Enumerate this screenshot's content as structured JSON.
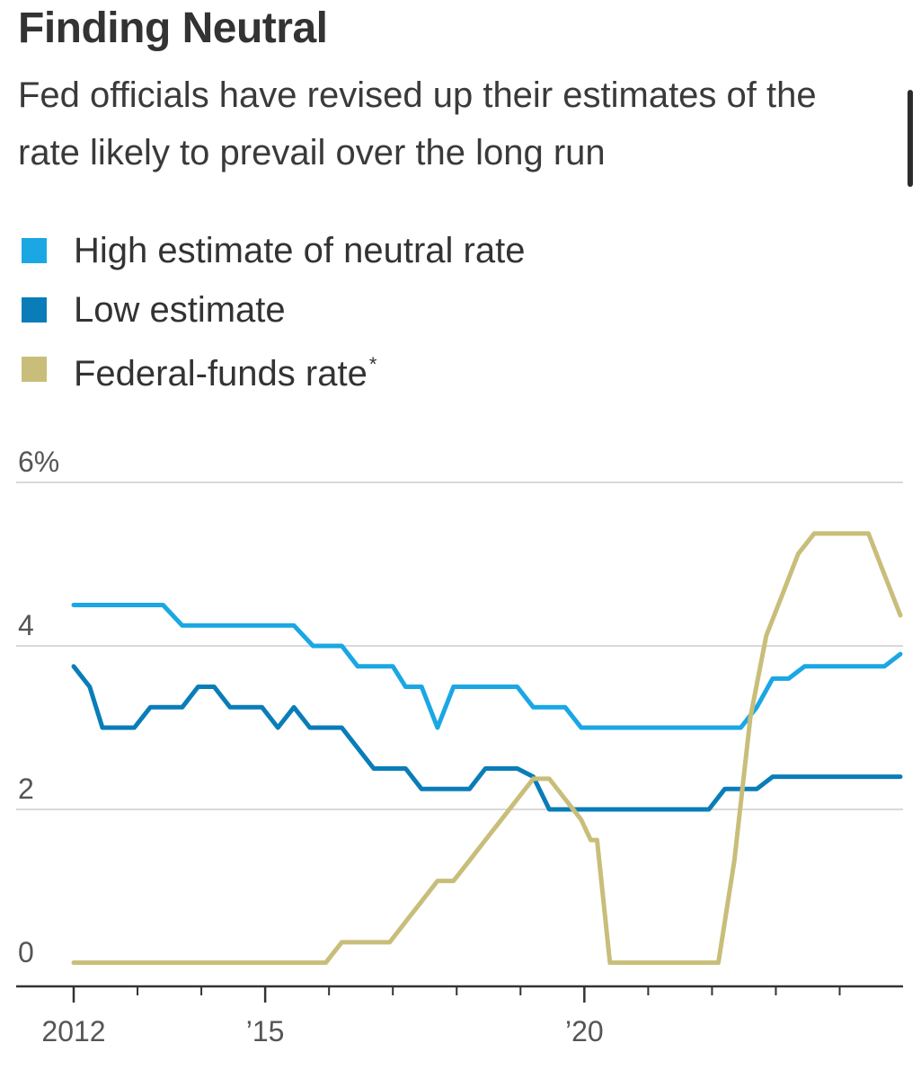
{
  "header": {
    "title": "Finding Neutral",
    "subtitle": "Fed officials have revised up their estimates of the rate likely to prevail over the long run"
  },
  "legend": {
    "items": [
      {
        "label": "High estimate of neutral rate",
        "color": "#1aa7e4",
        "footnote": ""
      },
      {
        "label": "Low estimate",
        "color": "#0a7db8",
        "footnote": ""
      },
      {
        "label": "Federal-funds rate",
        "color": "#c8be7a",
        "footnote": "*"
      }
    ]
  },
  "chart_data": {
    "type": "line",
    "title": "Finding Neutral",
    "xlabel": "",
    "ylabel": "",
    "xlim": [
      2012,
      2024.95
    ],
    "ylim": [
      0,
      6
    ],
    "grid": true,
    "y_ticks": [
      {
        "value": 6,
        "label": "6%"
      },
      {
        "value": 4,
        "label": "4"
      },
      {
        "value": 2,
        "label": "2"
      },
      {
        "value": 0,
        "label": "0"
      }
    ],
    "x_ticks": [
      {
        "value": 2012,
        "label": "2012"
      },
      {
        "value": 2015,
        "label": "’15"
      },
      {
        "value": 2020,
        "label": "’20"
      }
    ],
    "x_minor_ticks": [
      2013,
      2014,
      2016,
      2017,
      2018,
      2019,
      2021,
      2022,
      2023,
      2024
    ],
    "series": [
      {
        "name": "High estimate of neutral rate",
        "color": "#1aa7e4",
        "points": [
          [
            2012.0,
            4.5
          ],
          [
            2013.4,
            4.5
          ],
          [
            2013.7,
            4.25
          ],
          [
            2015.45,
            4.25
          ],
          [
            2015.75,
            4.0
          ],
          [
            2016.2,
            4.0
          ],
          [
            2016.45,
            3.75
          ],
          [
            2017.0,
            3.75
          ],
          [
            2017.2,
            3.5
          ],
          [
            2017.45,
            3.5
          ],
          [
            2017.7,
            3.0
          ],
          [
            2017.95,
            3.5
          ],
          [
            2018.95,
            3.5
          ],
          [
            2019.2,
            3.25
          ],
          [
            2019.7,
            3.25
          ],
          [
            2019.95,
            3.0
          ],
          [
            2022.45,
            3.0
          ],
          [
            2022.7,
            3.25
          ],
          [
            2022.95,
            3.6
          ],
          [
            2023.2,
            3.6
          ],
          [
            2023.45,
            3.75
          ],
          [
            2024.7,
            3.75
          ],
          [
            2024.95,
            3.9
          ]
        ]
      },
      {
        "name": "Low estimate",
        "color": "#0a7db8",
        "points": [
          [
            2012.0,
            3.75
          ],
          [
            2012.25,
            3.5
          ],
          [
            2012.45,
            3.0
          ],
          [
            2012.95,
            3.0
          ],
          [
            2013.2,
            3.25
          ],
          [
            2013.7,
            3.25
          ],
          [
            2013.95,
            3.5
          ],
          [
            2014.2,
            3.5
          ],
          [
            2014.45,
            3.25
          ],
          [
            2014.95,
            3.25
          ],
          [
            2015.2,
            3.0
          ],
          [
            2015.45,
            3.25
          ],
          [
            2015.7,
            3.0
          ],
          [
            2016.2,
            3.0
          ],
          [
            2016.7,
            2.5
          ],
          [
            2017.2,
            2.5
          ],
          [
            2017.45,
            2.25
          ],
          [
            2018.2,
            2.25
          ],
          [
            2018.45,
            2.5
          ],
          [
            2018.95,
            2.5
          ],
          [
            2019.2,
            2.4
          ],
          [
            2019.45,
            2.0
          ],
          [
            2021.95,
            2.0
          ],
          [
            2022.2,
            2.25
          ],
          [
            2022.7,
            2.25
          ],
          [
            2022.95,
            2.4
          ],
          [
            2024.95,
            2.4
          ]
        ]
      },
      {
        "name": "Federal-funds rate",
        "color": "#c8be7a",
        "points": [
          [
            2012.0,
            0.125
          ],
          [
            2015.95,
            0.125
          ],
          [
            2016.2,
            0.375
          ],
          [
            2016.95,
            0.375
          ],
          [
            2017.2,
            0.625
          ],
          [
            2017.45,
            0.875
          ],
          [
            2017.7,
            1.125
          ],
          [
            2017.95,
            1.125
          ],
          [
            2018.2,
            1.375
          ],
          [
            2018.45,
            1.625
          ],
          [
            2018.7,
            1.875
          ],
          [
            2018.95,
            2.125
          ],
          [
            2019.2,
            2.375
          ],
          [
            2019.45,
            2.375
          ],
          [
            2019.7,
            2.125
          ],
          [
            2019.95,
            1.875
          ],
          [
            2020.1,
            1.625
          ],
          [
            2020.2,
            1.625
          ],
          [
            2020.4,
            0.125
          ],
          [
            2022.1,
            0.125
          ],
          [
            2022.35,
            1.375
          ],
          [
            2022.6,
            3.125
          ],
          [
            2022.85,
            4.125
          ],
          [
            2023.1,
            4.625
          ],
          [
            2023.35,
            5.125
          ],
          [
            2023.6,
            5.375
          ],
          [
            2024.45,
            5.375
          ],
          [
            2024.7,
            4.875
          ],
          [
            2024.95,
            4.375
          ]
        ]
      }
    ]
  }
}
